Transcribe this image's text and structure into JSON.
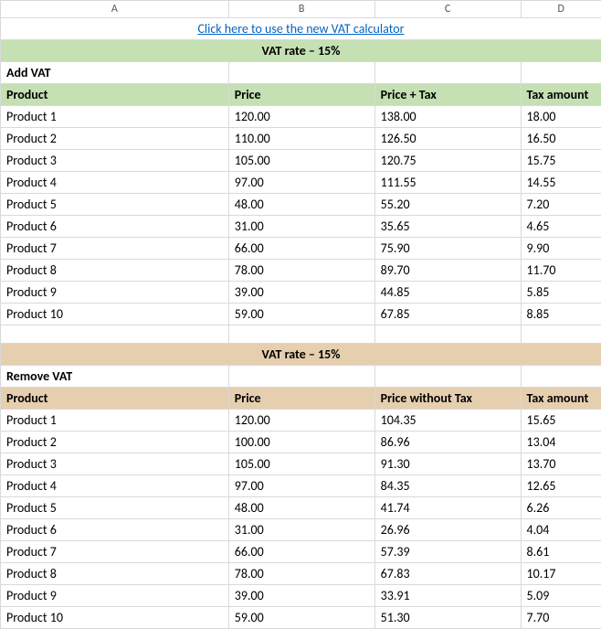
{
  "columns": {
    "a": "A",
    "b": "B",
    "c": "C",
    "d": "D",
    "widths": {
      "a": 250,
      "b": 160,
      "c": 160,
      "d": 88
    }
  },
  "link_text": "Click here to use the new VAT calculator",
  "add": {
    "band": "VAT rate –  15%",
    "section_title": "Add VAT",
    "headers": {
      "product": "Product",
      "price": "Price",
      "price_tax": "Price + Tax",
      "tax": "Tax amount"
    },
    "rows": [
      {
        "product": "Product 1",
        "price": "120.00",
        "price_tax": "138.00",
        "tax": "18.00"
      },
      {
        "product": "Product 2",
        "price": "110.00",
        "price_tax": "126.50",
        "tax": "16.50"
      },
      {
        "product": "Product 3",
        "price": "105.00",
        "price_tax": "120.75",
        "tax": "15.75"
      },
      {
        "product": "Product 4",
        "price": "97.00",
        "price_tax": "111.55",
        "tax": "14.55"
      },
      {
        "product": "Product 5",
        "price": "48.00",
        "price_tax": "55.20",
        "tax": "7.20"
      },
      {
        "product": "Product 6",
        "price": "31.00",
        "price_tax": "35.65",
        "tax": "4.65"
      },
      {
        "product": "Product 7",
        "price": "66.00",
        "price_tax": "75.90",
        "tax": "9.90"
      },
      {
        "product": "Product 8",
        "price": "78.00",
        "price_tax": "89.70",
        "tax": "11.70"
      },
      {
        "product": "Product 9",
        "price": "39.00",
        "price_tax": "44.85",
        "tax": "5.85"
      },
      {
        "product": "Product 10",
        "price": "59.00",
        "price_tax": "67.85",
        "tax": "8.85"
      }
    ]
  },
  "remove": {
    "band": "VAT rate –  15%",
    "section_title": "Remove VAT",
    "headers": {
      "product": "Product",
      "price": "Price",
      "price_tax": "Price without Tax",
      "tax": "Tax amount"
    },
    "rows": [
      {
        "product": "Product 1",
        "price": "120.00",
        "price_tax": "104.35",
        "tax": "15.65"
      },
      {
        "product": "Product 2",
        "price": "100.00",
        "price_tax": "86.96",
        "tax": "13.04"
      },
      {
        "product": "Product 3",
        "price": "105.00",
        "price_tax": "91.30",
        "tax": "13.70"
      },
      {
        "product": "Product 4",
        "price": "97.00",
        "price_tax": "84.35",
        "tax": "12.65"
      },
      {
        "product": "Product 5",
        "price": "48.00",
        "price_tax": "41.74",
        "tax": "6.26"
      },
      {
        "product": "Product 6",
        "price": "31.00",
        "price_tax": "26.96",
        "tax": "4.04"
      },
      {
        "product": "Product 7",
        "price": "66.00",
        "price_tax": "57.39",
        "tax": "8.61"
      },
      {
        "product": "Product 8",
        "price": "78.00",
        "price_tax": "67.83",
        "tax": "10.17"
      },
      {
        "product": "Product 9",
        "price": "39.00",
        "price_tax": "33.91",
        "tax": "5.09"
      },
      {
        "product": "Product 10",
        "price": "59.00",
        "price_tax": "51.30",
        "tax": "7.70"
      }
    ]
  },
  "colors": {
    "green_band": "#c5e0b3",
    "tan_band": "#e6cfaf",
    "grid": "#d9d9d9",
    "link": "#0563c1"
  }
}
